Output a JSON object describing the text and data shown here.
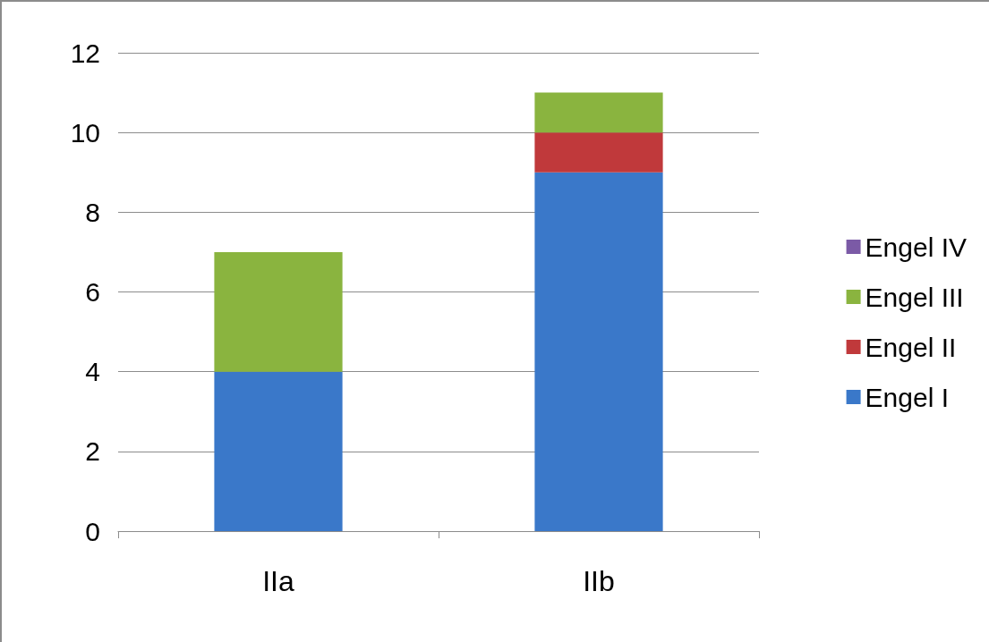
{
  "chart_data": {
    "type": "bar",
    "stacked": true,
    "categories": [
      "IIa",
      "IIb"
    ],
    "series": [
      {
        "name": "Engel I",
        "color": "#3a78c9",
        "values": [
          4,
          9
        ]
      },
      {
        "name": "Engel II",
        "color": "#c0393b",
        "values": [
          0,
          1
        ]
      },
      {
        "name": "Engel III",
        "color": "#8ab43f",
        "values": [
          3,
          1
        ]
      },
      {
        "name": "Engel IV",
        "color": "#7b5aa6",
        "values": [
          0,
          0
        ]
      }
    ],
    "ylim": [
      0,
      12
    ],
    "yticks": [
      0,
      2,
      4,
      6,
      8,
      10,
      12
    ],
    "grid": "y",
    "legend": "right"
  }
}
